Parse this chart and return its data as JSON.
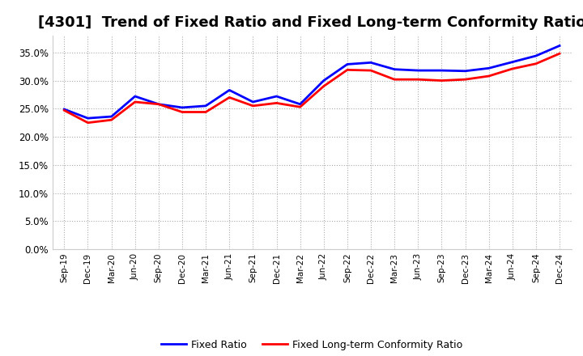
{
  "title": "[4301]  Trend of Fixed Ratio and Fixed Long-term Conformity Ratio",
  "x_labels": [
    "Sep-19",
    "Dec-19",
    "Mar-20",
    "Jun-20",
    "Sep-20",
    "Dec-20",
    "Mar-21",
    "Jun-21",
    "Sep-21",
    "Dec-21",
    "Mar-22",
    "Jun-22",
    "Sep-22",
    "Dec-22",
    "Mar-23",
    "Jun-23",
    "Sep-23",
    "Dec-23",
    "Mar-24",
    "Jun-24",
    "Sep-24",
    "Dec-24"
  ],
  "fixed_ratio": [
    0.249,
    0.233,
    0.236,
    0.272,
    0.258,
    0.252,
    0.255,
    0.283,
    0.262,
    0.272,
    0.258,
    0.3,
    0.329,
    0.332,
    0.32,
    0.318,
    0.318,
    0.317,
    0.322,
    0.333,
    0.344,
    0.362
  ],
  "fixed_lt_ratio": [
    0.247,
    0.225,
    0.23,
    0.262,
    0.258,
    0.244,
    0.244,
    0.27,
    0.255,
    0.26,
    0.253,
    0.29,
    0.319,
    0.318,
    0.302,
    0.302,
    0.3,
    0.302,
    0.308,
    0.321,
    0.33,
    0.348
  ],
  "fixed_ratio_color": "#0000FF",
  "fixed_lt_ratio_color": "#FF0000",
  "ylim": [
    0.0,
    0.38
  ],
  "yticks": [
    0.0,
    0.05,
    0.1,
    0.15,
    0.2,
    0.25,
    0.3,
    0.35
  ],
  "background_color": "#FFFFFF",
  "plot_bg_color": "#FFFFFF",
  "grid_color": "#AAAAAA",
  "title_fontsize": 13,
  "legend_labels": [
    "Fixed Ratio",
    "Fixed Long-term Conformity Ratio"
  ]
}
